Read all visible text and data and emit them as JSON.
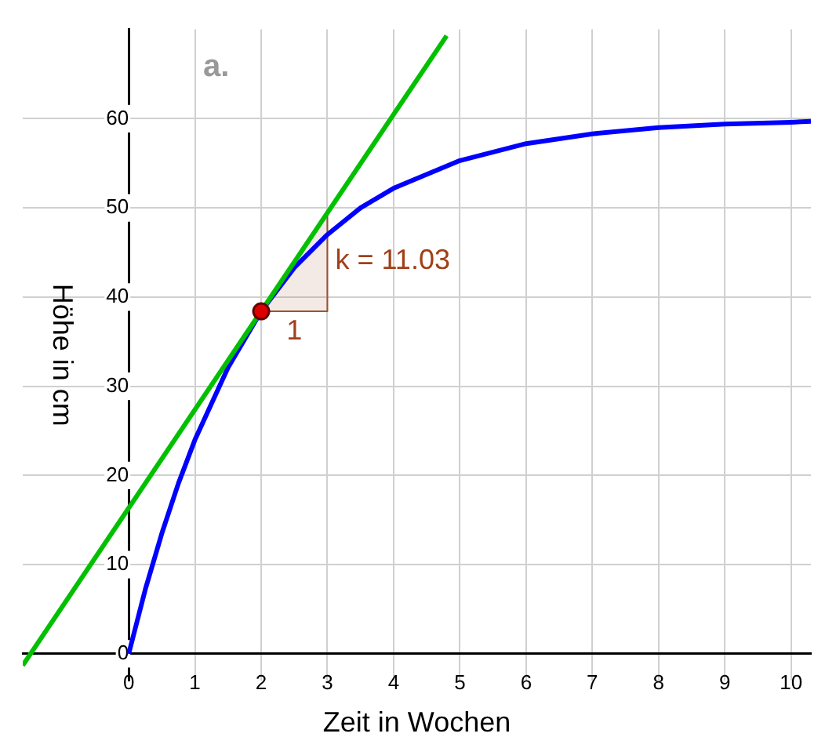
{
  "chart_data": {
    "type": "line",
    "title": "a.",
    "xlabel": "Zeit in Wochen",
    "ylabel": "Höhe in cm",
    "xlim": [
      -1.6,
      10.3
    ],
    "ylim": [
      -3,
      70
    ],
    "xticks": [
      0,
      1,
      2,
      3,
      4,
      5,
      6,
      7,
      8,
      9,
      10
    ],
    "yticks": [
      0,
      10,
      20,
      30,
      40,
      50,
      60
    ],
    "grid": true,
    "legend": false,
    "series": [
      {
        "type": "line",
        "color": "#0000ff",
        "marker": "none",
        "x": [
          0,
          0.25,
          0.5,
          0.75,
          1,
          1.5,
          2,
          2.5,
          3,
          3.5,
          4,
          5,
          6,
          7,
          8,
          9,
          10,
          10.3
        ],
        "values": [
          0,
          7.2,
          13.5,
          19.1,
          24,
          32.1,
          38.4,
          43.3,
          47,
          50,
          52.2,
          55.3,
          57.2,
          58.3,
          59,
          59.4,
          59.6,
          59.7
        ]
      },
      {
        "type": "line",
        "color": "#00c000",
        "marker": "none",
        "x": [
          -1.6,
          4.8
        ],
        "values": [
          -1.3,
          69.3
        ]
      },
      {
        "type": "area",
        "color": "#a0522d",
        "marker": "none",
        "x": [
          2,
          3,
          3,
          2
        ],
        "values": [
          38.4,
          38.4,
          49.4,
          38.4
        ]
      },
      {
        "type": "scatter",
        "color": "#dd0000",
        "marker": "circle",
        "x": [
          2
        ],
        "values": [
          38.4
        ]
      }
    ],
    "annotations": [
      {
        "text": "k = 11.03",
        "x": 3,
        "y": 44
      },
      {
        "text": "1",
        "x": 2.5,
        "y": 38.4
      }
    ]
  }
}
